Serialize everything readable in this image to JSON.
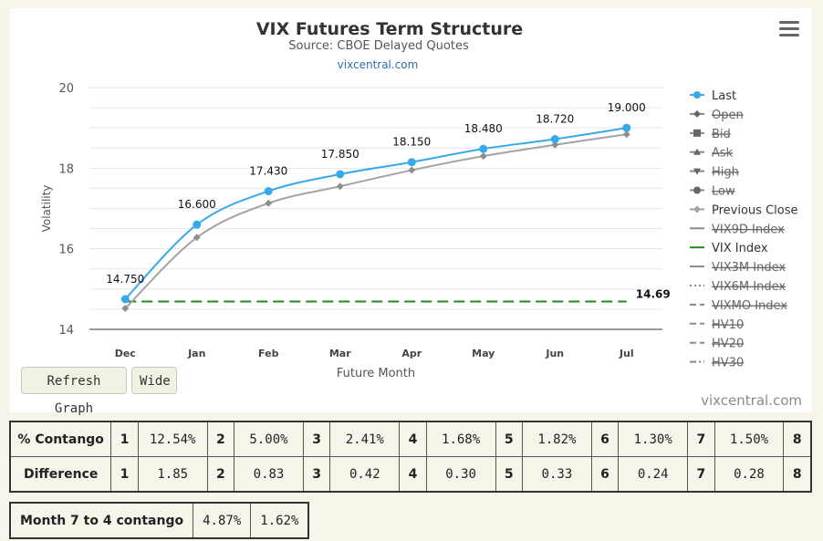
{
  "chart_data": {
    "type": "line",
    "title": "VIX Futures Term Structure",
    "subtitle": "Source: CBOE Delayed Quotes",
    "source_link": "vixcentral.com",
    "xlabel": "Future Month",
    "ylabel": "Volatility",
    "categories": [
      "Dec",
      "Jan",
      "Feb",
      "Mar",
      "Apr",
      "May",
      "Jun",
      "Jul"
    ],
    "ylim": [
      14,
      20
    ],
    "yticks": [
      14,
      16,
      18,
      20
    ],
    "grid": true,
    "legend_position": "right",
    "series": [
      {
        "name": "Last",
        "values": [
          14.75,
          16.6,
          17.43,
          17.85,
          18.15,
          18.48,
          18.72,
          19.0
        ],
        "color": "#36a9e8",
        "labels": [
          "14.750",
          "16.600",
          "17.430",
          "17.850",
          "18.150",
          "18.480",
          "18.720",
          "19.000"
        ]
      },
      {
        "name": "Previous Close",
        "values": [
          14.52,
          16.28,
          17.13,
          17.55,
          17.95,
          18.3,
          18.58,
          18.84
        ],
        "color": "#a3a3a3"
      },
      {
        "name": "VIX Index",
        "value": 14.69,
        "label": "14.69",
        "color": "#1f8a1f",
        "style": "dashed"
      }
    ],
    "legend": [
      {
        "name": "Last",
        "enabled": true,
        "symbol": "circle",
        "color": "#36a9e8"
      },
      {
        "name": "Open",
        "enabled": false,
        "symbol": "diamond"
      },
      {
        "name": "Bid",
        "enabled": false,
        "symbol": "square"
      },
      {
        "name": "Ask",
        "enabled": false,
        "symbol": "triangle"
      },
      {
        "name": "High",
        "enabled": false,
        "symbol": "triangle-down"
      },
      {
        "name": "Low",
        "enabled": false,
        "symbol": "circle"
      },
      {
        "name": "Previous Close",
        "enabled": true,
        "symbol": "diamond",
        "color": "#a3a3a3"
      },
      {
        "name": "VIX9D Index",
        "enabled": false,
        "symbol": "line"
      },
      {
        "name": "VIX Index",
        "enabled": true,
        "symbol": "line",
        "color": "#1f8a1f"
      },
      {
        "name": "VIX3M Index",
        "enabled": false,
        "symbol": "line"
      },
      {
        "name": "VIX6M Index",
        "enabled": false,
        "symbol": "dotted"
      },
      {
        "name": "VIXMO Index",
        "enabled": false,
        "symbol": "dashed"
      },
      {
        "name": "HV10",
        "enabled": false,
        "symbol": "dashed"
      },
      {
        "name": "HV20",
        "enabled": false,
        "symbol": "dashed"
      },
      {
        "name": "HV30",
        "enabled": false,
        "symbol": "dashdot"
      }
    ]
  },
  "buttons": {
    "refresh": "Refresh Graph",
    "wide": "Wide"
  },
  "credit": "vixcentral.com",
  "contango_table": {
    "contango_label": "% Contango",
    "difference_label": "Difference",
    "contango": [
      {
        "n": "1",
        "v": "12.54%"
      },
      {
        "n": "2",
        "v": "5.00%"
      },
      {
        "n": "3",
        "v": "2.41%"
      },
      {
        "n": "4",
        "v": "1.68%"
      },
      {
        "n": "5",
        "v": "1.82%"
      },
      {
        "n": "6",
        "v": "1.30%"
      },
      {
        "n": "7",
        "v": "1.50%"
      },
      {
        "n": "8",
        "v": ""
      }
    ],
    "difference": [
      {
        "n": "1",
        "v": "1.85"
      },
      {
        "n": "2",
        "v": "0.83"
      },
      {
        "n": "3",
        "v": "0.42"
      },
      {
        "n": "4",
        "v": "0.30"
      },
      {
        "n": "5",
        "v": "0.33"
      },
      {
        "n": "6",
        "v": "0.24"
      },
      {
        "n": "7",
        "v": "0.28"
      },
      {
        "n": "8",
        "v": ""
      }
    ]
  },
  "month74": {
    "label": "Month 7 to 4 contango",
    "value1": "4.87%",
    "value2": "1.62%"
  }
}
